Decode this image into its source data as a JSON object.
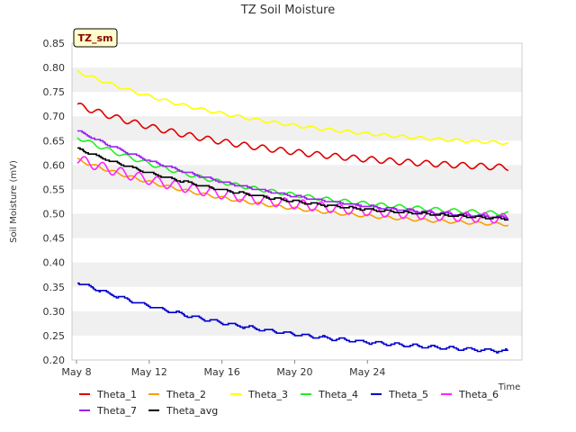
{
  "chart_data": {
    "type": "line",
    "title": "TZ Soil Moisture",
    "xlabel": "Time",
    "ylabel": "Soil Moisture (mV)",
    "site_label": "TZ_sm",
    "ylim": [
      0.2,
      0.85
    ],
    "xlim": [
      0,
      24.5
    ],
    "yticks": [
      "0.20",
      "0.25",
      "0.30",
      "0.35",
      "0.40",
      "0.45",
      "0.50",
      "0.55",
      "0.60",
      "0.65",
      "0.70",
      "0.75",
      "0.80",
      "0.85"
    ],
    "xticks": [
      {
        "label": "May 8",
        "day": 0
      },
      {
        "label": "May 12",
        "day": 4
      },
      {
        "label": "May 16",
        "day": 8
      },
      {
        "label": "May 20",
        "day": 12
      },
      {
        "label": "May 24",
        "day": 16
      }
    ],
    "grid": "alternating horizontal bands",
    "legend_position": "bottom",
    "series": [
      {
        "name": "Theta_1",
        "color": "#dd0000",
        "start": 0.723,
        "end": 0.595,
        "wave": 0.006,
        "steps": false
      },
      {
        "name": "Theta_2",
        "color": "#f5a000",
        "start": 0.611,
        "end": 0.478,
        "wave": 0.003,
        "steps": false
      },
      {
        "name": "Theta_3",
        "color": "#ffff00",
        "start": 0.792,
        "end": 0.645,
        "wave": 0.003,
        "steps": false
      },
      {
        "name": "Theta_4",
        "color": "#22ee22",
        "start": 0.657,
        "end": 0.5,
        "wave": 0.004,
        "steps": false
      },
      {
        "name": "Theta_5",
        "color": "#0000cc",
        "start": 0.36,
        "end": 0.218,
        "wave": 0.003,
        "steps": true
      },
      {
        "name": "Theta_6",
        "color": "#ff22ff",
        "start": 0.612,
        "end": 0.49,
        "wave": 0.01,
        "steps": false
      },
      {
        "name": "Theta_7",
        "color": "#9922ee",
        "start": 0.671,
        "end": 0.492,
        "wave": 0.002,
        "steps": true
      },
      {
        "name": "Theta_avg",
        "color": "#000000",
        "start": 0.634,
        "end": 0.49,
        "wave": 0.002,
        "steps": true
      }
    ]
  }
}
